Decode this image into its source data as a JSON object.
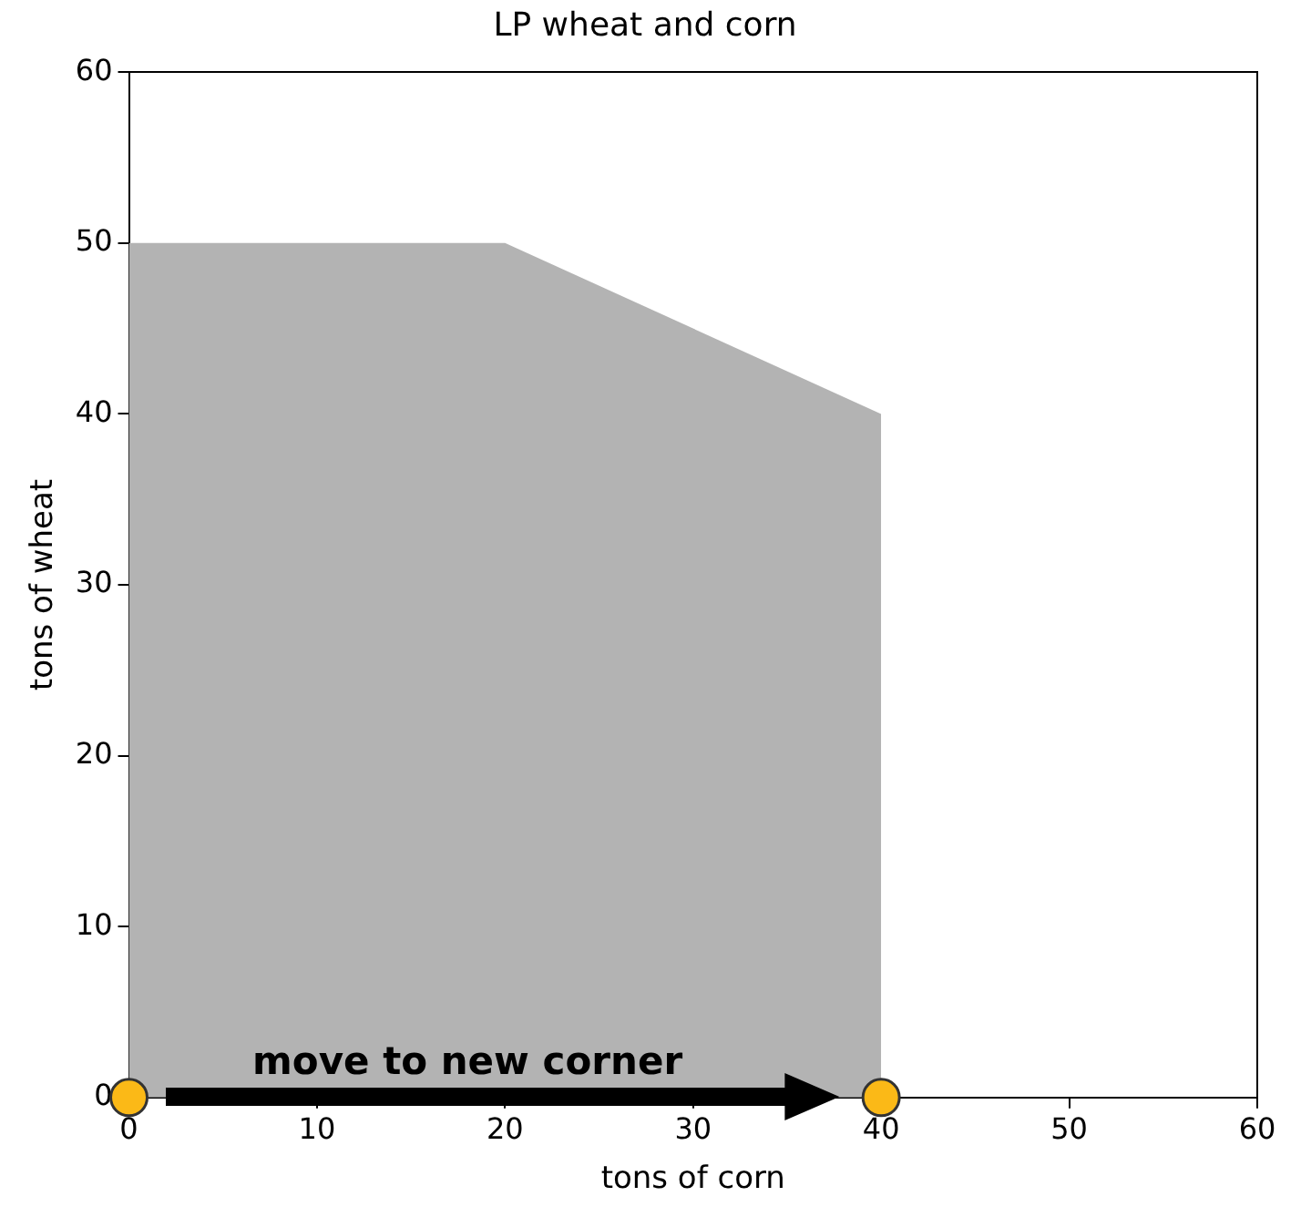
{
  "chart_data": {
    "type": "area",
    "title": "LP wheat and corn",
    "xlabel": "tons of corn",
    "ylabel": "tons of wheat",
    "xlim": [
      0,
      60
    ],
    "xticks": [
      0,
      10,
      20,
      30,
      40,
      50,
      60
    ],
    "ylim": [
      0,
      60
    ],
    "yticks": [
      0,
      10,
      20,
      30,
      40,
      50,
      60
    ],
    "grid": false,
    "legend": false,
    "series": [
      {
        "color": "#b3b3b3",
        "x": [
          0,
          20,
          40
        ],
        "values": [
          50,
          50,
          40
        ],
        "marker": "none"
      },
      {
        "type": "scatter",
        "color": "#fbb917",
        "x": [
          0,
          40
        ],
        "values": [
          0,
          0
        ],
        "marker": "circle"
      }
    ],
    "annotations": [
      "move to new corner"
    ]
  }
}
